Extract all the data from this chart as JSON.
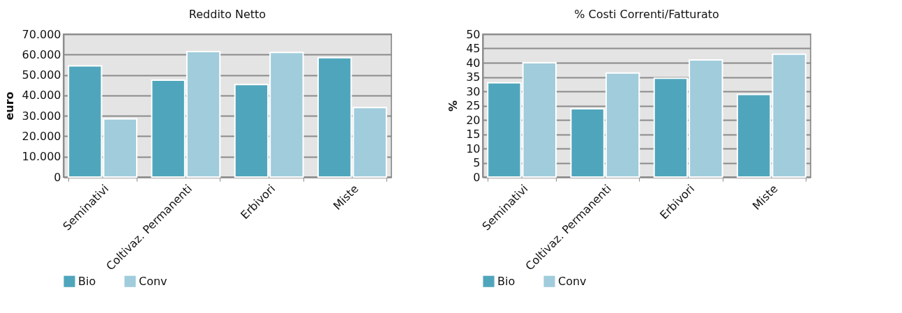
{
  "chart_data": [
    {
      "type": "bar",
      "title": "Reddito Netto",
      "ylabel": "euro",
      "categories": [
        "Seminativi",
        "Coltivaz. Permanenti",
        "Erbivori",
        "Miste"
      ],
      "series": [
        {
          "name": "Bio",
          "color": "#4fa6bc",
          "values": [
            54500,
            47500,
            45300,
            58500
          ]
        },
        {
          "name": "Conv",
          "color": "#a0ccdc",
          "values": [
            28500,
            61500,
            61000,
            34100
          ]
        }
      ],
      "ylim": [
        0,
        70000
      ],
      "yticks": [
        0,
        {
          "value": 10000,
          "label": "10.000"
        },
        {
          "value": 20000,
          "label": "20.000"
        },
        {
          "value": 30000,
          "label": "30.000"
        },
        {
          "value": 40000,
          "label": "40.000"
        },
        {
          "value": 50000,
          "label": "50.000"
        },
        {
          "value": 60000,
          "label": "60.000"
        },
        {
          "value": 70000,
          "label": "70.000"
        }
      ],
      "grid": "y",
      "legend": "bottom"
    },
    {
      "type": "bar",
      "title": "% Costi Correnti/Fatturato",
      "ylabel": "%",
      "categories": [
        "Seminativi",
        "Coltivaz. Permanenti",
        "Erbivori",
        "Miste"
      ],
      "series": [
        {
          "name": "Bio",
          "color": "#4fa6bc",
          "values": [
            33,
            23.9,
            34.6,
            28.9
          ]
        },
        {
          "name": "Conv",
          "color": "#a0ccdc",
          "values": [
            40,
            36.4,
            41,
            43
          ]
        }
      ],
      "ylim": [
        0,
        50
      ],
      "yticks": [
        0,
        5,
        10,
        15,
        20,
        25,
        30,
        35,
        40,
        45,
        50
      ],
      "grid": "y",
      "legend": "bottom"
    }
  ]
}
